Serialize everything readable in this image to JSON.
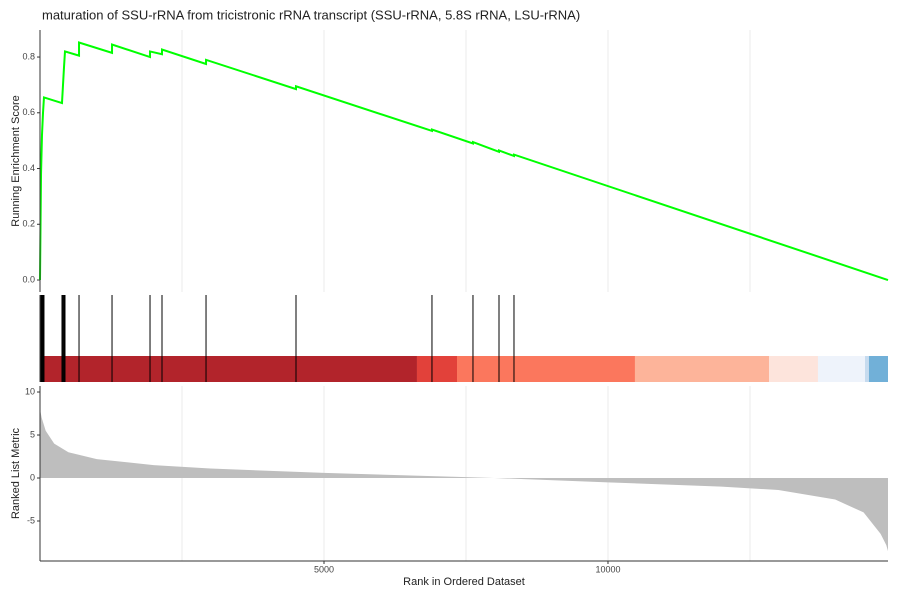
{
  "chart_data": [
    {
      "type": "line",
      "title": "maturation of SSU-rRNA from tricistronic rRNA transcript (SSU-rRNA, 5.8S rRNA, LSU-rRNA)",
      "ylabel": "Running Enrichment Score",
      "color": "#00ff00",
      "xlim": [
        0,
        14930
      ],
      "ylim": [
        -0.043,
        0.897
      ],
      "yticks": [
        {
          "value": 0,
          "label": "0.0"
        },
        0.2,
        0.4,
        0.6,
        0.8
      ],
      "xgrid": [
        2500,
        5000,
        7500,
        10000,
        12500
      ],
      "x": [
        0,
        18,
        35,
        53,
        70,
        387,
        405,
        423,
        440,
        687,
        687,
        1268,
        1268,
        1937,
        1937,
        2148,
        2148,
        2923,
        2923,
        4507,
        4507,
        6901,
        6901,
        7623,
        7623,
        8081,
        8081,
        8345,
        8345,
        14930
      ],
      "values": [
        0,
        0.38,
        0.52,
        0.6,
        0.655,
        0.635,
        0.7,
        0.765,
        0.82,
        0.805,
        0.852,
        0.815,
        0.845,
        0.8,
        0.82,
        0.81,
        0.827,
        0.775,
        0.79,
        0.685,
        0.695,
        0.535,
        0.54,
        0.49,
        0.495,
        0.46,
        0.465,
        0.445,
        0.45,
        0
      ]
    },
    {
      "type": "rug",
      "color": "#000000",
      "xlim": [
        0,
        14930
      ],
      "hits": [
        18,
        35,
        53,
        70,
        387,
        405,
        423,
        440,
        687,
        1268,
        1937,
        2148,
        2923,
        4507,
        6901,
        7623,
        8081,
        8345
      ],
      "bands": [
        {
          "start": 0,
          "end": 6637,
          "color": "#b2242b"
        },
        {
          "start": 6637,
          "end": 7342,
          "color": "#e2413a"
        },
        {
          "start": 7342,
          "end": 10475,
          "color": "#fb775d"
        },
        {
          "start": 10475,
          "end": 12835,
          "color": "#fdb49a"
        },
        {
          "start": 12835,
          "end": 13697,
          "color": "#fde4dc"
        },
        {
          "start": 13697,
          "end": 14525,
          "color": "#eef3fb"
        },
        {
          "start": 14525,
          "end": 14595,
          "color": "#c6dbef"
        },
        {
          "start": 14595,
          "end": 14930,
          "color": "#71b0d8"
        }
      ]
    },
    {
      "type": "area",
      "ylabel": "Ranked List Metric",
      "xlabel": "Rank in Ordered Dataset",
      "color": "#bebebe",
      "xlim": [
        0,
        14930
      ],
      "ylim": [
        -9.65,
        10.7
      ],
      "yticks": [
        -5,
        0,
        5,
        10
      ],
      "xticks": [
        5000,
        10000
      ],
      "xgrid": [
        2500,
        5000,
        7500,
        10000,
        12500
      ],
      "x": [
        0,
        30,
        100,
        250,
        500,
        1000,
        2000,
        3000,
        5000,
        7500,
        8000,
        10000,
        12000,
        13000,
        14000,
        14500,
        14800,
        14900,
        14930
      ],
      "values": [
        8,
        7,
        5.5,
        4,
        3,
        2.2,
        1.5,
        1.1,
        0.6,
        0.1,
        0,
        -0.5,
        -1,
        -1.4,
        -2.5,
        -4,
        -6.5,
        -7.8,
        -8.5
      ]
    }
  ]
}
